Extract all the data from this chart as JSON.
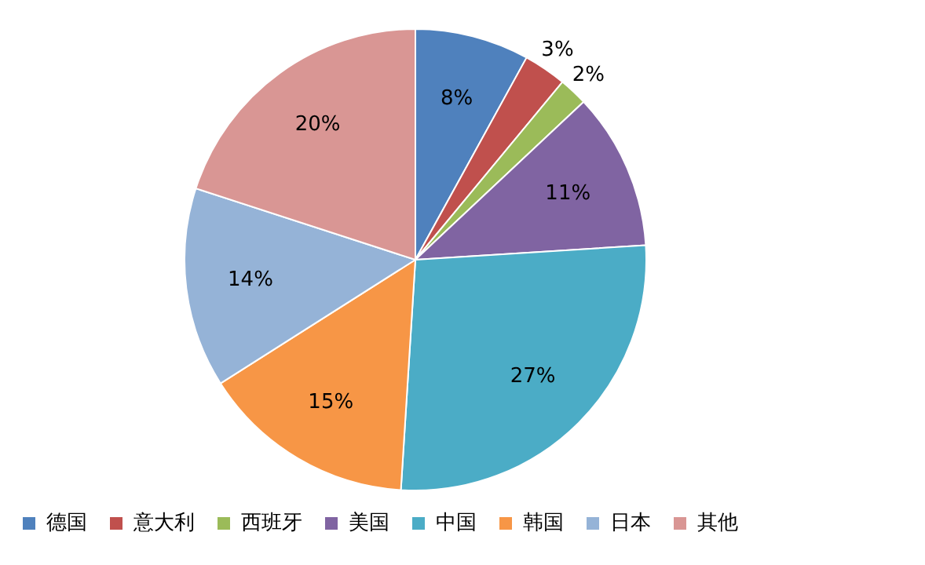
{
  "chart_data": {
    "type": "pie",
    "categories": [
      "德国",
      "意大利",
      "西班牙",
      "美国",
      "中国",
      "韩国",
      "日本",
      "其他"
    ],
    "values": [
      8,
      3,
      2,
      11,
      27,
      15,
      14,
      20
    ],
    "colors": [
      "#4f81bd",
      "#c0504d",
      "#9bbb59",
      "#8064a2",
      "#4bacc6",
      "#f79646",
      "#95b3d7",
      "#d99694"
    ],
    "value_labels": [
      "8%",
      "3%",
      "2%",
      "11%",
      "27%",
      "15%",
      "14%",
      "20%"
    ],
    "legend": "bottom"
  }
}
